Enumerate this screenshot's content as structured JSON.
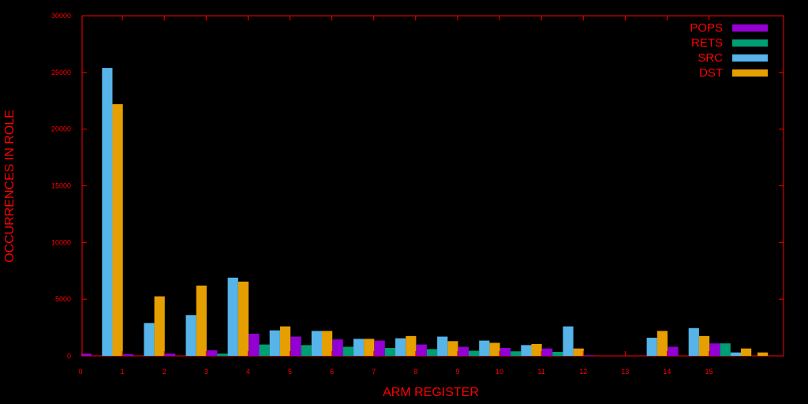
{
  "chart_data": {
    "type": "bar",
    "xlabel": "ARM REGISTER",
    "ylabel": "OCCURRENCES IN ROLE",
    "ylim": [
      0,
      30000
    ],
    "yticks": [
      0,
      5000,
      10000,
      15000,
      20000,
      25000,
      30000
    ],
    "xticks": [
      "0",
      "1",
      "2",
      "3",
      "4",
      "5",
      "6",
      "7",
      "8",
      "9",
      "10",
      "11",
      "12",
      "13",
      "14",
      "15"
    ],
    "legend_position": "top-right",
    "grid": false,
    "series": [
      {
        "name": "POPS",
        "color": "#9400d3",
        "values": [
          200,
          150,
          200,
          500,
          1950,
          1700,
          1450,
          1350,
          1000,
          800,
          700,
          650,
          50,
          0,
          800,
          1100
        ]
      },
      {
        "name": "RETS",
        "color": "#009e73",
        "values": [
          0,
          0,
          0,
          200,
          1000,
          950,
          800,
          700,
          600,
          450,
          400,
          350,
          0,
          0,
          0,
          1100
        ]
      },
      {
        "name": "SRC",
        "color": "#56b4e9",
        "values": [
          25400,
          2900,
          3600,
          6900,
          2250,
          2200,
          1500,
          1550,
          1700,
          1350,
          950,
          2600,
          0,
          1600,
          2450,
          300
        ]
      },
      {
        "name": "DST",
        "color": "#e69f00",
        "values": [
          22200,
          5250,
          6200,
          6550,
          2600,
          2200,
          1500,
          1750,
          1300,
          1150,
          1050,
          650,
          0,
          2200,
          1750,
          650
        ]
      }
    ],
    "extra_bar": {
      "series": "DST",
      "value": 300
    }
  }
}
